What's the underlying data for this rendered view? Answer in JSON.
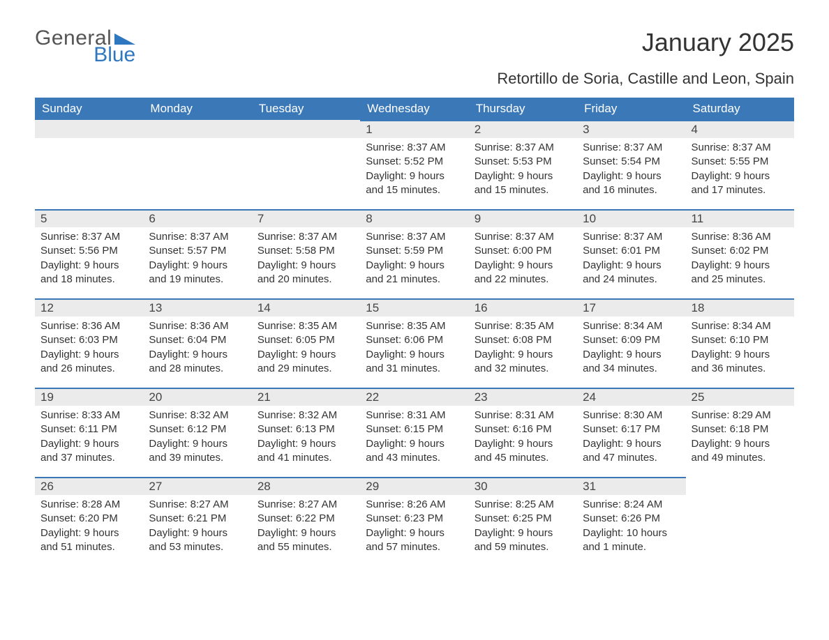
{
  "logo": {
    "word1": "General",
    "word2": "Blue",
    "tri_color": "#2f78c0",
    "text1_color": "#555555",
    "text2_color": "#2f78c0"
  },
  "title": "January 2025",
  "subtitle": "Retortillo de Soria, Castille and Leon, Spain",
  "colors": {
    "header_bg": "#3a78b8",
    "header_text": "#ffffff",
    "daynum_bg": "#ebebeb",
    "daynum_border": "#3a78b8",
    "body_text": "#333333",
    "page_bg": "#ffffff"
  },
  "fonts": {
    "title_size": 36,
    "subtitle_size": 22,
    "header_size": 17,
    "daynum_size": 17,
    "body_size": 15
  },
  "weekdays": [
    "Sunday",
    "Monday",
    "Tuesday",
    "Wednesday",
    "Thursday",
    "Friday",
    "Saturday"
  ],
  "weeks": [
    [
      null,
      null,
      null,
      {
        "n": "1",
        "sr": "Sunrise: 8:37 AM",
        "ss": "Sunset: 5:52 PM",
        "d1": "Daylight: 9 hours",
        "d2": "and 15 minutes."
      },
      {
        "n": "2",
        "sr": "Sunrise: 8:37 AM",
        "ss": "Sunset: 5:53 PM",
        "d1": "Daylight: 9 hours",
        "d2": "and 15 minutes."
      },
      {
        "n": "3",
        "sr": "Sunrise: 8:37 AM",
        "ss": "Sunset: 5:54 PM",
        "d1": "Daylight: 9 hours",
        "d2": "and 16 minutes."
      },
      {
        "n": "4",
        "sr": "Sunrise: 8:37 AM",
        "ss": "Sunset: 5:55 PM",
        "d1": "Daylight: 9 hours",
        "d2": "and 17 minutes."
      }
    ],
    [
      {
        "n": "5",
        "sr": "Sunrise: 8:37 AM",
        "ss": "Sunset: 5:56 PM",
        "d1": "Daylight: 9 hours",
        "d2": "and 18 minutes."
      },
      {
        "n": "6",
        "sr": "Sunrise: 8:37 AM",
        "ss": "Sunset: 5:57 PM",
        "d1": "Daylight: 9 hours",
        "d2": "and 19 minutes."
      },
      {
        "n": "7",
        "sr": "Sunrise: 8:37 AM",
        "ss": "Sunset: 5:58 PM",
        "d1": "Daylight: 9 hours",
        "d2": "and 20 minutes."
      },
      {
        "n": "8",
        "sr": "Sunrise: 8:37 AM",
        "ss": "Sunset: 5:59 PM",
        "d1": "Daylight: 9 hours",
        "d2": "and 21 minutes."
      },
      {
        "n": "9",
        "sr": "Sunrise: 8:37 AM",
        "ss": "Sunset: 6:00 PM",
        "d1": "Daylight: 9 hours",
        "d2": "and 22 minutes."
      },
      {
        "n": "10",
        "sr": "Sunrise: 8:37 AM",
        "ss": "Sunset: 6:01 PM",
        "d1": "Daylight: 9 hours",
        "d2": "and 24 minutes."
      },
      {
        "n": "11",
        "sr": "Sunrise: 8:36 AM",
        "ss": "Sunset: 6:02 PM",
        "d1": "Daylight: 9 hours",
        "d2": "and 25 minutes."
      }
    ],
    [
      {
        "n": "12",
        "sr": "Sunrise: 8:36 AM",
        "ss": "Sunset: 6:03 PM",
        "d1": "Daylight: 9 hours",
        "d2": "and 26 minutes."
      },
      {
        "n": "13",
        "sr": "Sunrise: 8:36 AM",
        "ss": "Sunset: 6:04 PM",
        "d1": "Daylight: 9 hours",
        "d2": "and 28 minutes."
      },
      {
        "n": "14",
        "sr": "Sunrise: 8:35 AM",
        "ss": "Sunset: 6:05 PM",
        "d1": "Daylight: 9 hours",
        "d2": "and 29 minutes."
      },
      {
        "n": "15",
        "sr": "Sunrise: 8:35 AM",
        "ss": "Sunset: 6:06 PM",
        "d1": "Daylight: 9 hours",
        "d2": "and 31 minutes."
      },
      {
        "n": "16",
        "sr": "Sunrise: 8:35 AM",
        "ss": "Sunset: 6:08 PM",
        "d1": "Daylight: 9 hours",
        "d2": "and 32 minutes."
      },
      {
        "n": "17",
        "sr": "Sunrise: 8:34 AM",
        "ss": "Sunset: 6:09 PM",
        "d1": "Daylight: 9 hours",
        "d2": "and 34 minutes."
      },
      {
        "n": "18",
        "sr": "Sunrise: 8:34 AM",
        "ss": "Sunset: 6:10 PM",
        "d1": "Daylight: 9 hours",
        "d2": "and 36 minutes."
      }
    ],
    [
      {
        "n": "19",
        "sr": "Sunrise: 8:33 AM",
        "ss": "Sunset: 6:11 PM",
        "d1": "Daylight: 9 hours",
        "d2": "and 37 minutes."
      },
      {
        "n": "20",
        "sr": "Sunrise: 8:32 AM",
        "ss": "Sunset: 6:12 PM",
        "d1": "Daylight: 9 hours",
        "d2": "and 39 minutes."
      },
      {
        "n": "21",
        "sr": "Sunrise: 8:32 AM",
        "ss": "Sunset: 6:13 PM",
        "d1": "Daylight: 9 hours",
        "d2": "and 41 minutes."
      },
      {
        "n": "22",
        "sr": "Sunrise: 8:31 AM",
        "ss": "Sunset: 6:15 PM",
        "d1": "Daylight: 9 hours",
        "d2": "and 43 minutes."
      },
      {
        "n": "23",
        "sr": "Sunrise: 8:31 AM",
        "ss": "Sunset: 6:16 PM",
        "d1": "Daylight: 9 hours",
        "d2": "and 45 minutes."
      },
      {
        "n": "24",
        "sr": "Sunrise: 8:30 AM",
        "ss": "Sunset: 6:17 PM",
        "d1": "Daylight: 9 hours",
        "d2": "and 47 minutes."
      },
      {
        "n": "25",
        "sr": "Sunrise: 8:29 AM",
        "ss": "Sunset: 6:18 PM",
        "d1": "Daylight: 9 hours",
        "d2": "and 49 minutes."
      }
    ],
    [
      {
        "n": "26",
        "sr": "Sunrise: 8:28 AM",
        "ss": "Sunset: 6:20 PM",
        "d1": "Daylight: 9 hours",
        "d2": "and 51 minutes."
      },
      {
        "n": "27",
        "sr": "Sunrise: 8:27 AM",
        "ss": "Sunset: 6:21 PM",
        "d1": "Daylight: 9 hours",
        "d2": "and 53 minutes."
      },
      {
        "n": "28",
        "sr": "Sunrise: 8:27 AM",
        "ss": "Sunset: 6:22 PM",
        "d1": "Daylight: 9 hours",
        "d2": "and 55 minutes."
      },
      {
        "n": "29",
        "sr": "Sunrise: 8:26 AM",
        "ss": "Sunset: 6:23 PM",
        "d1": "Daylight: 9 hours",
        "d2": "and 57 minutes."
      },
      {
        "n": "30",
        "sr": "Sunrise: 8:25 AM",
        "ss": "Sunset: 6:25 PM",
        "d1": "Daylight: 9 hours",
        "d2": "and 59 minutes."
      },
      {
        "n": "31",
        "sr": "Sunrise: 8:24 AM",
        "ss": "Sunset: 6:26 PM",
        "d1": "Daylight: 10 hours",
        "d2": "and 1 minute."
      },
      null
    ]
  ]
}
